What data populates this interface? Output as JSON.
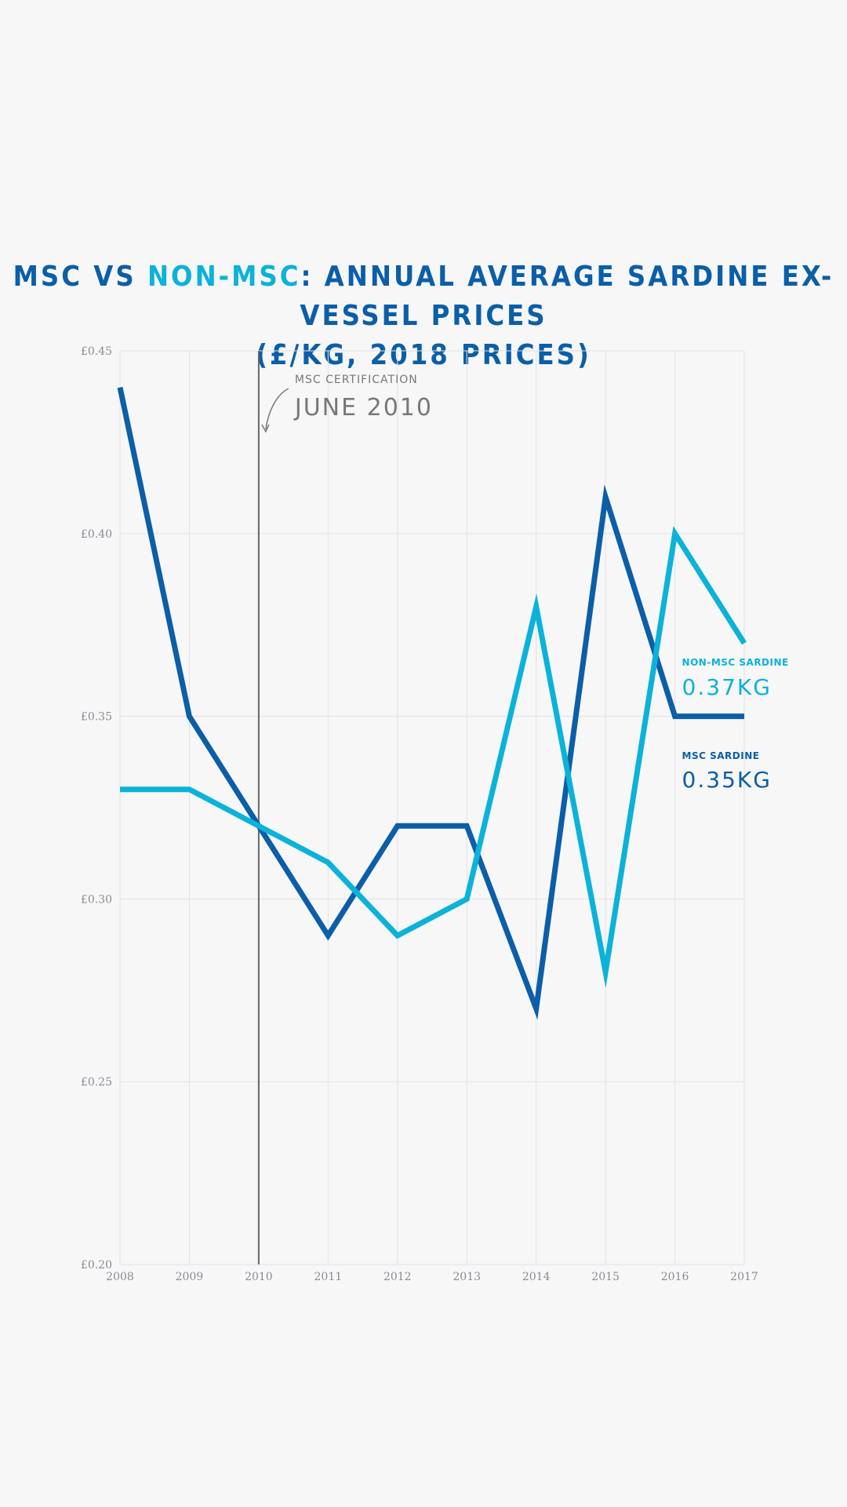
{
  "title": {
    "part1": "MSC VS ",
    "highlight": "NON-MSC",
    "part2": ": ANNUAL AVERAGE SARDINE EX-VESSEL PRICES",
    "line2": "(£/KG, 2018 PRICES)"
  },
  "colors": {
    "msc": "#0b5ea8",
    "non_msc": "#0bb2d9",
    "annotation": "#666666",
    "grid": "#e2e2e6"
  },
  "annotation": {
    "label": "MSC CERTIFICATION",
    "date": "JUNE 2010",
    "x": 2010
  },
  "chart_data": {
    "type": "line",
    "title": "MSC VS NON-MSC: ANNUAL AVERAGE SARDINE EX-VESSEL PRICES (£/KG, 2018 PRICES)",
    "xlabel": "",
    "ylabel": "",
    "x": [
      2008,
      2009,
      2010,
      2011,
      2012,
      2013,
      2014,
      2015,
      2016,
      2017
    ],
    "ylim": [
      0.2,
      0.45
    ],
    "yticks": [
      0.45,
      0.4,
      0.35,
      0.3,
      0.25,
      0.2
    ],
    "ytick_labels": [
      "£0.45",
      "£0.40",
      "£0.35",
      "£0.30",
      "£0.25",
      "£0.20"
    ],
    "xtick_labels": [
      "2008",
      "2009",
      "2010",
      "2011",
      "2012",
      "2013",
      "2014",
      "2015",
      "2016",
      "2017"
    ],
    "grid": true,
    "series": [
      {
        "key": "msc",
        "values": [
          0.44,
          0.35,
          0.32,
          0.29,
          0.32,
          0.32,
          0.27,
          0.41,
          0.35,
          0.35
        ],
        "label_name": "MSC SARDINE",
        "label_value": "0.35KG"
      },
      {
        "key": "non_msc",
        "values": [
          0.33,
          0.33,
          0.32,
          0.31,
          0.29,
          0.3,
          0.38,
          0.28,
          0.4,
          0.37
        ],
        "label_name": "NON-MSC SARDINE",
        "label_value": "0.37KG"
      }
    ]
  }
}
